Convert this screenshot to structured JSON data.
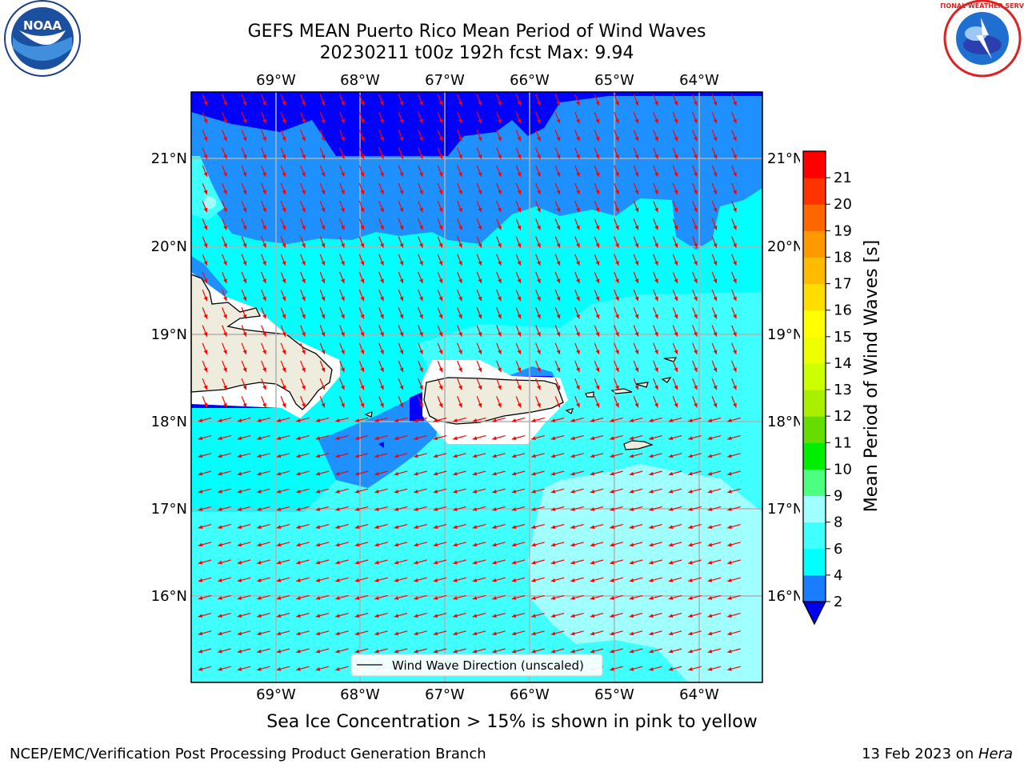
{
  "title": {
    "line1": "GEFS MEAN Puerto Rico Mean Period of Wind Waves",
    "line2": "20230211 t00z 192h fcst   Max: 9.94"
  },
  "logos": {
    "noaa_text": "NOAA",
    "nws_text": "NATIONAL WEATHER SERVICE"
  },
  "map": {
    "lon_labels": [
      "69°W",
      "68°W",
      "67°W",
      "66°W",
      "65°W",
      "64°W"
    ],
    "lat_labels": [
      "21°N",
      "20°N",
      "19°N",
      "18°N",
      "17°N",
      "16°N"
    ],
    "legend_label": "Wind Wave Direction (unscaled)",
    "colors": {
      "lt_4": "#0000ff",
      "b4_6": "#1e90ff",
      "b6_8": "#00ffff",
      "b8_9": "#40ffff",
      "b9_10": "#a0ffff",
      "land": "#eeecdc",
      "arrow": "#ff0000"
    }
  },
  "colorbar": {
    "label": "Mean Period of Wind Waves [s]",
    "ticks": [
      "2",
      "4",
      "6",
      "8",
      "9",
      "10",
      "11",
      "12",
      "13",
      "14",
      "15",
      "16",
      "17",
      "18",
      "19",
      "20",
      "21"
    ],
    "colors": [
      "#1a7dff",
      "#00ffff",
      "#40ffff",
      "#a0ffff",
      "#4dff80",
      "#00ee00",
      "#66dd00",
      "#aaee00",
      "#ccff00",
      "#eeff00",
      "#ffff00",
      "#ffdd00",
      "#ffbb00",
      "#ff9900",
      "#ff6600",
      "#ff3300",
      "#ff0000"
    ],
    "under_color": "#0000ee"
  },
  "bottom_note": "Sea Ice Concentration > 15% is shown in pink to yellow",
  "footer": {
    "left": "NCEP/EMC/Verification Post Processing Product Generation Branch",
    "right_prefix": "13 Feb 2023 on ",
    "right_host": "Hera"
  }
}
